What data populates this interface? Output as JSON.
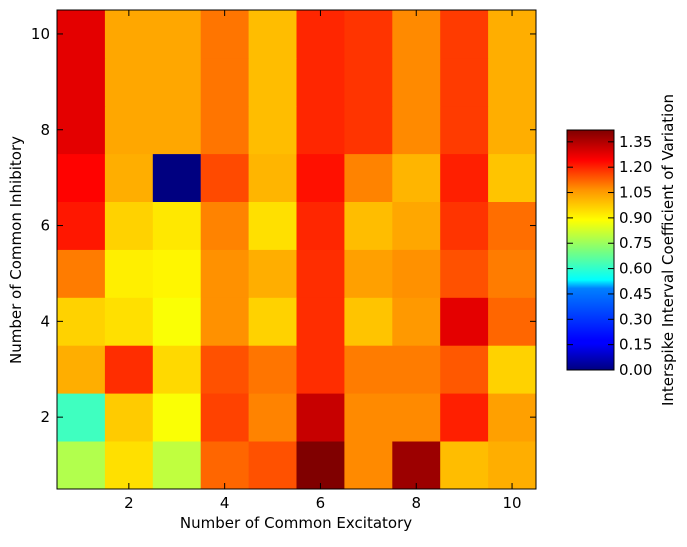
{
  "chart_data": {
    "type": "heatmap",
    "title": "",
    "xlabel": "Number of Common Excitatory",
    "ylabel": "Number of Common Inhibitory",
    "colorbar_label": "Interspike Interval Coefficient of Variation",
    "x": [
      1,
      2,
      3,
      4,
      5,
      6,
      7,
      8,
      9,
      10
    ],
    "y": [
      1,
      2,
      3,
      4,
      5,
      6,
      7,
      8,
      9,
      10
    ],
    "xlim": [
      0.5,
      10.5
    ],
    "ylim": [
      0.5,
      10.5
    ],
    "x_ticks": [
      "2",
      "4",
      "6",
      "8",
      "10"
    ],
    "y_ticks": [
      "2",
      "4",
      "6",
      "8",
      "10"
    ],
    "colorbar_range": [
      0.0,
      1.42
    ],
    "colorbar_ticks": [
      "0.00",
      "0.15",
      "0.30",
      "0.45",
      "0.60",
      "0.75",
      "0.90",
      "1.05",
      "1.20",
      "1.35"
    ],
    "colormap": "jet",
    "z_rows_bottom_to_top": [
      [
        0.78,
        0.93,
        0.8,
        1.1,
        1.13,
        1.42,
        1.05,
        1.38,
        0.98,
        1.0
      ],
      [
        0.62,
        0.96,
        0.88,
        1.15,
        1.06,
        1.32,
        1.05,
        1.05,
        1.2,
        1.02
      ],
      [
        1.0,
        1.18,
        0.94,
        1.13,
        1.08,
        1.18,
        1.07,
        1.07,
        1.12,
        0.95
      ],
      [
        0.95,
        0.93,
        0.88,
        1.04,
        0.95,
        1.18,
        0.97,
        1.03,
        1.28,
        1.1
      ],
      [
        1.07,
        0.91,
        0.9,
        1.04,
        1.0,
        1.18,
        1.02,
        1.04,
        1.13,
        1.07
      ],
      [
        1.21,
        0.95,
        0.92,
        1.06,
        0.93,
        1.19,
        0.98,
        1.01,
        1.17,
        1.09
      ],
      [
        1.24,
        1.0,
        0.0,
        1.14,
        0.99,
        1.22,
        1.06,
        0.99,
        1.2,
        0.97
      ],
      [
        1.28,
        1.01,
        1.01,
        1.08,
        0.98,
        1.19,
        1.17,
        1.05,
        1.16,
        1.0
      ],
      [
        1.28,
        1.01,
        1.01,
        1.08,
        0.98,
        1.19,
        1.17,
        1.05,
        1.16,
        1.0
      ],
      [
        1.28,
        1.01,
        1.01,
        1.08,
        0.98,
        1.19,
        1.17,
        1.05,
        1.16,
        1.0
      ]
    ]
  }
}
